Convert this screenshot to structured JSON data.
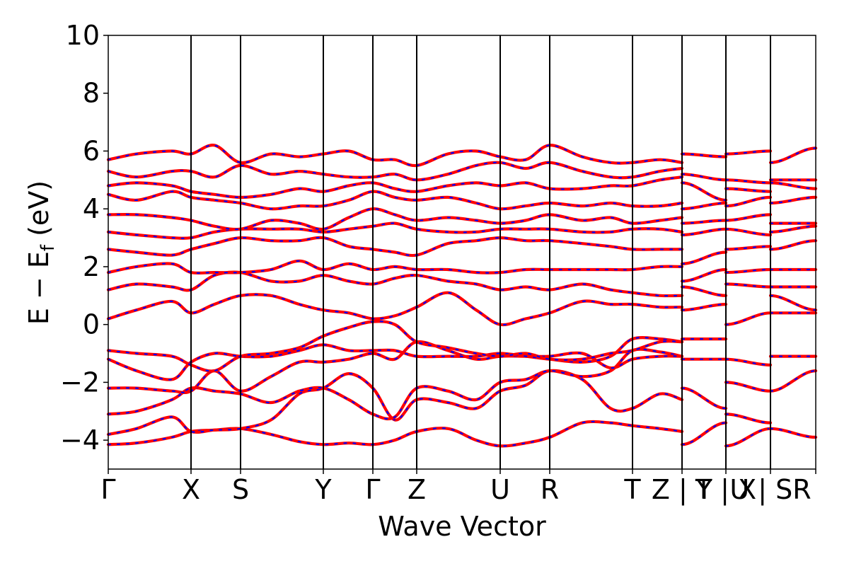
{
  "chart_data": {
    "type": "line",
    "title": "",
    "xlabel": "Wave Vector",
    "ylabel": {
      "prefix": "E − E",
      "subscript": "f",
      "suffix": " (eV)"
    },
    "ylim": [
      -5,
      10
    ],
    "yticks": [
      -4,
      -2,
      0,
      2,
      4,
      6,
      8,
      10
    ],
    "ytick_labels": [
      "−4",
      "−2",
      "0",
      "2",
      "4",
      "6",
      "8",
      "10"
    ],
    "xlim": [
      0,
      1000
    ],
    "grid": false,
    "legend": "none",
    "kpoints": [
      {
        "x": 0,
        "label": "Γ"
      },
      {
        "x": 117,
        "label": "X"
      },
      {
        "x": 187,
        "label": "S"
      },
      {
        "x": 304,
        "label": "Y"
      },
      {
        "x": 374,
        "label": "Γ"
      },
      {
        "x": 436,
        "label": "Z"
      },
      {
        "x": 554,
        "label": "U"
      },
      {
        "x": 624,
        "label": "R"
      },
      {
        "x": 741,
        "label": "T"
      },
      {
        "x": 811,
        "label": "Z | Y"
      },
      {
        "x": 873,
        "label": "T | X"
      },
      {
        "x": 936,
        "label": "U | SR"
      },
      {
        "x": 1000,
        "label": ""
      }
    ],
    "colors": {
      "series_primary": "#ff0000",
      "series_secondary": "#0000ff",
      "kpath_line": "#000000"
    },
    "series": [
      {
        "style": "solid red (spin-up)",
        "bands": [
          {
            "x": [
              0,
              40,
              90,
              117,
              150,
              187,
              230,
              270,
              304,
              340,
              374,
              405,
              436,
              480,
              520,
              554,
              590,
              624,
              670,
              710,
              741,
              780,
              811
            ],
            "y": [
              -4.15,
              -4.1,
              -3.9,
              -3.7,
              -3.65,
              -3.6,
              -3.8,
              -4.05,
              -4.15,
              -4.1,
              -4.15,
              -4.0,
              -3.7,
              -3.6,
              -4.0,
              -4.2,
              -4.1,
              -3.9,
              -3.4,
              -3.4,
              -3.5,
              -3.6,
              -3.7
            ]
          },
          {
            "x": [
              0,
              40,
              90,
              117,
              150,
              187,
              230,
              270,
              304,
              340,
              374,
              405,
              436,
              480,
              520,
              554,
              590,
              624,
              670,
              710,
              741,
              780,
              811
            ],
            "y": [
              -3.8,
              -3.6,
              -3.2,
              -3.7,
              -3.65,
              -3.6,
              -3.3,
              -2.4,
              -2.2,
              -1.7,
              -2.2,
              -3.3,
              -2.6,
              -2.7,
              -2.9,
              -2.3,
              -2.1,
              -1.6,
              -1.9,
              -2.9,
              -2.9,
              -2.4,
              -2.6
            ]
          },
          {
            "x": [
              0,
              40,
              90,
              117,
              150,
              187,
              230,
              270,
              304,
              340,
              374,
              405,
              436,
              480,
              520,
              554,
              590,
              624,
              670,
              710,
              741,
              780,
              811
            ],
            "y": [
              -3.1,
              -3.0,
              -2.6,
              -2.2,
              -2.3,
              -2.4,
              -2.7,
              -2.3,
              -2.2,
              -2.6,
              -3.1,
              -3.2,
              -2.2,
              -2.3,
              -2.6,
              -2.0,
              -1.9,
              -1.6,
              -1.8,
              -1.6,
              -0.9,
              -0.95,
              -1.1
            ]
          },
          {
            "x": [
              0,
              40,
              90,
              117,
              150,
              187,
              230,
              270,
              304,
              340,
              374,
              405,
              436,
              480,
              520,
              554,
              590,
              624,
              670,
              710,
              741,
              780,
              811
            ],
            "y": [
              -2.2,
              -2.2,
              -2.3,
              -2.3,
              -1.6,
              -2.3,
              -1.8,
              -1.3,
              -1.3,
              -1.2,
              -1.0,
              -1.2,
              -0.6,
              -0.9,
              -1.2,
              -1.1,
              -1.1,
              -1.1,
              -1.0,
              -1.5,
              -1.2,
              -1.1,
              -1.1
            ]
          },
          {
            "x": [
              0,
              40,
              90,
              117,
              150,
              187,
              230,
              270,
              304,
              340,
              374,
              405,
              436,
              480,
              520,
              554,
              590,
              624,
              670,
              710,
              741,
              780,
              811
            ],
            "y": [
              -1.2,
              -1.6,
              -1.9,
              -1.3,
              -1.0,
              -1.1,
              -1.1,
              -0.9,
              -0.7,
              -0.9,
              -0.9,
              -0.9,
              -1.1,
              -1.1,
              -1.1,
              -1.0,
              -1.1,
              -1.2,
              -1.3,
              -1.1,
              -0.5,
              -0.5,
              -0.6
            ]
          },
          {
            "x": [
              0,
              40,
              90,
              117,
              150,
              187,
              230,
              270,
              304,
              340,
              374,
              405,
              436,
              480,
              520,
              554,
              590,
              624,
              670,
              710,
              741,
              780,
              811
            ],
            "y": [
              -0.9,
              -1.0,
              -1.1,
              -1.4,
              -1.6,
              -1.1,
              -1.0,
              -0.8,
              -0.4,
              -0.1,
              0.1,
              0.0,
              -0.6,
              -0.8,
              -1.0,
              -1.1,
              -1.0,
              -1.2,
              -1.2,
              -1.0,
              -0.9,
              -0.6,
              -0.6
            ]
          },
          {
            "x": [
              0,
              40,
              90,
              117,
              150,
              187,
              230,
              270,
              304,
              340,
              374,
              405,
              436,
              480,
              520,
              554,
              590,
              624,
              670,
              710,
              741,
              780,
              811
            ],
            "y": [
              0.2,
              0.5,
              0.8,
              0.4,
              0.7,
              1.0,
              1.0,
              0.7,
              0.5,
              0.4,
              0.2,
              0.3,
              0.6,
              1.1,
              0.5,
              0.0,
              0.2,
              0.4,
              0.8,
              0.7,
              0.7,
              0.6,
              0.6
            ]
          },
          {
            "x": [
              0,
              40,
              90,
              117,
              150,
              187,
              230,
              270,
              304,
              340,
              374,
              405,
              436,
              480,
              520,
              554,
              590,
              624,
              670,
              710,
              741,
              780,
              811
            ],
            "y": [
              1.2,
              1.4,
              1.3,
              1.2,
              1.7,
              1.8,
              1.5,
              1.5,
              1.7,
              1.5,
              1.4,
              1.6,
              1.7,
              1.5,
              1.4,
              1.2,
              1.3,
              1.2,
              1.4,
              1.2,
              1.1,
              1.0,
              1.0
            ]
          },
          {
            "x": [
              0,
              40,
              90,
              117,
              150,
              187,
              230,
              270,
              304,
              340,
              374,
              405,
              436,
              480,
              520,
              554,
              590,
              624,
              670,
              710,
              741,
              780,
              811
            ],
            "y": [
              1.8,
              2.0,
              2.1,
              1.8,
              1.8,
              1.8,
              1.9,
              2.2,
              1.9,
              2.1,
              1.9,
              2.0,
              1.9,
              1.9,
              1.8,
              1.8,
              1.9,
              1.9,
              1.9,
              1.9,
              1.9,
              2.0,
              2.0
            ]
          },
          {
            "x": [
              0,
              40,
              90,
              117,
              150,
              187,
              230,
              270,
              304,
              340,
              374,
              405,
              436,
              480,
              520,
              554,
              590,
              624,
              670,
              710,
              741,
              780,
              811
            ],
            "y": [
              2.6,
              2.5,
              2.4,
              2.6,
              2.8,
              3.0,
              2.9,
              2.9,
              3.0,
              2.7,
              2.6,
              2.5,
              2.4,
              2.8,
              2.9,
              3.0,
              2.9,
              2.9,
              2.8,
              2.7,
              2.6,
              2.6,
              2.6
            ]
          },
          {
            "x": [
              0,
              40,
              90,
              117,
              150,
              187,
              230,
              270,
              304,
              340,
              374,
              405,
              436,
              480,
              520,
              554,
              590,
              624,
              670,
              710,
              741,
              780,
              811
            ],
            "y": [
              3.2,
              3.1,
              3.0,
              3.0,
              3.2,
              3.3,
              3.3,
              3.3,
              3.2,
              3.3,
              3.4,
              3.5,
              3.3,
              3.2,
              3.2,
              3.3,
              3.3,
              3.3,
              3.2,
              3.2,
              3.3,
              3.3,
              3.2
            ]
          },
          {
            "x": [
              0,
              40,
              90,
              117,
              150,
              187,
              230,
              270,
              304,
              340,
              374,
              405,
              436,
              480,
              520,
              554,
              590,
              624,
              670,
              710,
              741,
              780,
              811
            ],
            "y": [
              3.8,
              3.8,
              3.7,
              3.6,
              3.4,
              3.3,
              3.6,
              3.5,
              3.3,
              3.7,
              4.0,
              3.8,
              3.6,
              3.7,
              3.6,
              3.5,
              3.6,
              3.8,
              3.6,
              3.7,
              3.5,
              3.6,
              3.7
            ]
          },
          {
            "x": [
              0,
              40,
              90,
              117,
              150,
              187,
              230,
              270,
              304,
              340,
              374,
              405,
              436,
              480,
              520,
              554,
              590,
              624,
              670,
              710,
              741,
              780,
              811
            ],
            "y": [
              4.5,
              4.3,
              4.6,
              4.4,
              4.3,
              4.2,
              4.0,
              4.1,
              4.1,
              4.3,
              4.6,
              4.4,
              4.3,
              4.4,
              4.2,
              4.0,
              4.1,
              4.2,
              4.1,
              4.2,
              4.1,
              4.1,
              4.2
            ]
          },
          {
            "x": [
              0,
              40,
              90,
              117,
              150,
              187,
              230,
              270,
              304,
              340,
              374,
              405,
              436,
              480,
              520,
              554,
              590,
              624,
              670,
              710,
              741,
              780,
              811
            ],
            "y": [
              4.8,
              4.9,
              4.8,
              4.6,
              4.5,
              4.4,
              4.5,
              4.7,
              4.6,
              4.8,
              4.9,
              4.7,
              4.6,
              4.8,
              4.9,
              4.8,
              4.9,
              4.7,
              4.7,
              4.8,
              4.8,
              5.0,
              5.1
            ]
          },
          {
            "x": [
              0,
              40,
              90,
              117,
              150,
              187,
              230,
              270,
              304,
              340,
              374,
              405,
              436,
              480,
              520,
              554,
              590,
              624,
              670,
              710,
              741,
              780,
              811
            ],
            "y": [
              5.3,
              5.1,
              5.3,
              5.3,
              5.1,
              5.5,
              5.2,
              5.3,
              5.2,
              5.1,
              5.1,
              5.2,
              5.0,
              5.2,
              5.5,
              5.6,
              5.4,
              5.6,
              5.3,
              5.1,
              5.1,
              5.3,
              5.4
            ]
          },
          {
            "x": [
              0,
              40,
              90,
              117,
              150,
              187,
              230,
              270,
              304,
              340,
              374,
              405,
              436,
              480,
              520,
              554,
              590,
              624,
              670,
              710,
              741,
              780,
              811
            ],
            "y": [
              5.7,
              5.9,
              6.0,
              5.9,
              6.2,
              5.6,
              5.9,
              5.8,
              5.9,
              6.0,
              5.7,
              5.7,
              5.5,
              5.9,
              6.0,
              5.8,
              5.7,
              6.2,
              5.8,
              5.6,
              5.6,
              5.7,
              5.6
            ]
          }
        ]
      },
      {
        "style": "dashed blue (spin-down)",
        "bands": "same as series 1 (overlapping)"
      }
    ],
    "right_segments": [
      {
        "x": [
          811,
          873
        ],
        "y": [
          [
            -4.15,
            -3.4
          ],
          [
            -2.2,
            -2.9
          ],
          [
            -1.2,
            -1.2
          ],
          [
            -0.5,
            -0.5
          ],
          [
            0.5,
            0.7
          ],
          [
            1.3,
            1.0
          ],
          [
            1.5,
            1.9
          ],
          [
            2.1,
            2.5
          ],
          [
            3.1,
            3.3
          ],
          [
            3.5,
            3.6
          ],
          [
            4.0,
            4.2
          ],
          [
            4.9,
            4.3
          ],
          [
            5.2,
            5.0
          ],
          [
            5.9,
            5.8
          ]
        ]
      },
      {
        "x": [
          873,
          936
        ],
        "y": [
          [
            -4.2,
            -3.6
          ],
          [
            -3.1,
            -3.4
          ],
          [
            -2.0,
            -2.3
          ],
          [
            -1.2,
            -1.4
          ],
          [
            0.0,
            0.4
          ],
          [
            1.4,
            1.3
          ],
          [
            1.8,
            1.9
          ],
          [
            2.6,
            2.7
          ],
          [
            3.3,
            3.1
          ],
          [
            3.6,
            3.8
          ],
          [
            4.1,
            4.4
          ],
          [
            4.7,
            4.6
          ],
          [
            5.0,
            4.9
          ],
          [
            5.9,
            6.0
          ]
        ]
      },
      {
        "x": [
          936,
          1000
        ],
        "y": [
          [
            -3.6,
            -3.9
          ],
          [
            -2.3,
            -1.6
          ],
          [
            -1.1,
            -1.1
          ],
          [
            0.4,
            0.4
          ],
          [
            1.0,
            0.5
          ],
          [
            1.3,
            1.3
          ],
          [
            1.9,
            1.9
          ],
          [
            2.6,
            2.9
          ],
          [
            3.2,
            3.4
          ],
          [
            3.5,
            3.5
          ],
          [
            4.2,
            4.4
          ],
          [
            4.9,
            4.7
          ],
          [
            5.0,
            5.0
          ],
          [
            5.6,
            6.1
          ]
        ]
      }
    ]
  }
}
